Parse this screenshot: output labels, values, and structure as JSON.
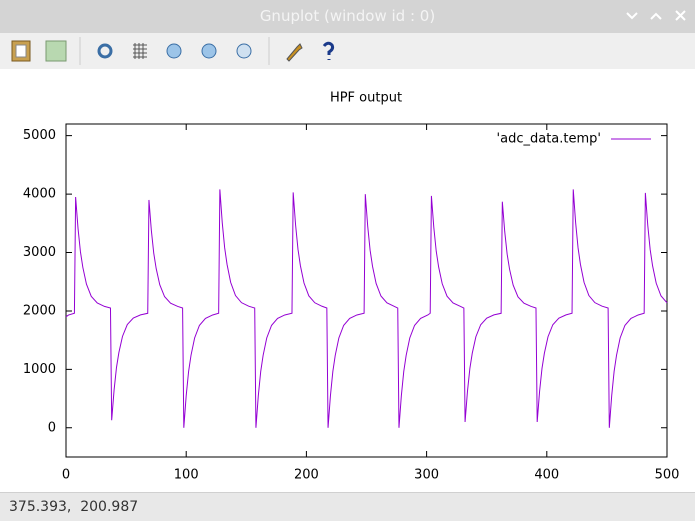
{
  "window": {
    "title": "Gnuplot (window id : 0)"
  },
  "status": "375.393,  200.987",
  "chart_data": {
    "type": "line",
    "title": "HPF output",
    "x": [
      0,
      2,
      7,
      8,
      10,
      12,
      14,
      17,
      21,
      26,
      32,
      37,
      38,
      40,
      42,
      44,
      47,
      51,
      56,
      62,
      68,
      69,
      71,
      73,
      75,
      78,
      82,
      87,
      93,
      97,
      98,
      100,
      102,
      104,
      107,
      111,
      116,
      122,
      127,
      128,
      130,
      132,
      134,
      137,
      141,
      146,
      152,
      157,
      158,
      160,
      162,
      164,
      167,
      171,
      176,
      182,
      188,
      189,
      191,
      193,
      195,
      198,
      202,
      207,
      213,
      217,
      218,
      220,
      222,
      224,
      227,
      231,
      236,
      242,
      248,
      249,
      251,
      253,
      255,
      258,
      262,
      267,
      273,
      276,
      277,
      279,
      281,
      283,
      286,
      290,
      295,
      301,
      303,
      304,
      306,
      308,
      310,
      313,
      317,
      322,
      328,
      331,
      332,
      334,
      336,
      338,
      341,
      345,
      350,
      356,
      362,
      363,
      365,
      367,
      369,
      372,
      376,
      381,
      387,
      391,
      392,
      394,
      396,
      398,
      401,
      405,
      410,
      416,
      421,
      422,
      424,
      426,
      428,
      431,
      435,
      440,
      446,
      451,
      452,
      454,
      456,
      458,
      461,
      465,
      470,
      476,
      481,
      482,
      484,
      486,
      488,
      491,
      495,
      500
    ],
    "series": [
      {
        "name": "'adc_data.temp'",
        "color": "#9400d3",
        "values": [
          1900,
          1930,
          1960,
          3950,
          3415,
          3014,
          2747,
          2460,
          2250,
          2136,
          2078,
          2050,
          130,
          645,
          1032,
          1289,
          1565,
          1768,
          1878,
          1933,
          1960,
          3900,
          3379,
          2989,
          2728,
          2449,
          2245,
          2133,
          2077,
          2050,
          0,
          552,
          965,
          1241,
          1537,
          1753,
          1872,
          1931,
          1960,
          4080,
          3509,
          3080,
          2795,
          2489,
          2264,
          2142,
          2081,
          2050,
          0,
          552,
          965,
          1241,
          1537,
          1753,
          1872,
          1931,
          1960,
          4030,
          3473,
          3055,
          2776,
          2478,
          2259,
          2140,
          2080,
          2050,
          0,
          552,
          965,
          1241,
          1537,
          1753,
          1872,
          1931,
          1960,
          4000,
          3451,
          3040,
          2765,
          2471,
          2256,
          2138,
          2079,
          2050,
          0,
          552,
          965,
          1241,
          1537,
          1753,
          1872,
          1931,
          1960,
          3970,
          3430,
          3024,
          2754,
          2465,
          2252,
          2137,
          2079,
          2050,
          100,
          624,
          1016,
          1278,
          1559,
          1764,
          1877,
          1933,
          1960,
          3870,
          3358,
          2973,
          2717,
          2443,
          2241,
          2132,
          2077,
          2050,
          100,
          624,
          1016,
          1278,
          1559,
          1764,
          1877,
          1933,
          1960,
          4080,
          3509,
          3080,
          2795,
          2489,
          2264,
          2142,
          2081,
          2050,
          0,
          552,
          965,
          1241,
          1537,
          1753,
          1872,
          1931,
          1960,
          4020,
          3466,
          3050,
          2773,
          2476,
          2258,
          2139
        ]
      }
    ],
    "xlim": [
      0,
      500
    ],
    "xticks": [
      0,
      100,
      200,
      300,
      400,
      500
    ],
    "ylim": [
      -500,
      5200
    ],
    "yticks": [
      0,
      1000,
      2000,
      3000,
      4000,
      5000
    ],
    "legend": "top right"
  }
}
